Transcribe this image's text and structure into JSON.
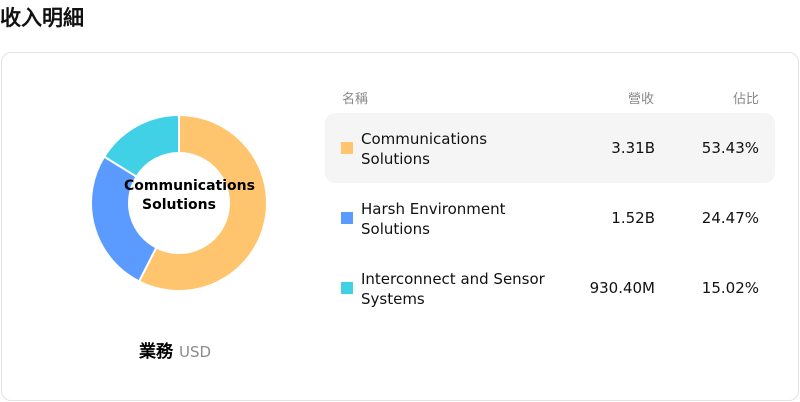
{
  "title": "收入明細",
  "caption": {
    "label": "業務",
    "unit": "USD"
  },
  "center_label": "Communications Solutions",
  "table": {
    "headers": [
      "名稱",
      "營收",
      "佔比"
    ]
  },
  "chart_data": {
    "type": "pie",
    "variant": "donut",
    "categories": [
      "Communications Solutions",
      "Harsh Environment Solutions",
      "Interconnect and Sensor Systems"
    ],
    "values": [
      "3.31B",
      "1.52B",
      "930.40M"
    ],
    "percents": [
      53.43,
      24.47,
      15.02
    ],
    "colors": [
      "#FFC56E",
      "#5B9BFF",
      "#41D1E6"
    ]
  }
}
